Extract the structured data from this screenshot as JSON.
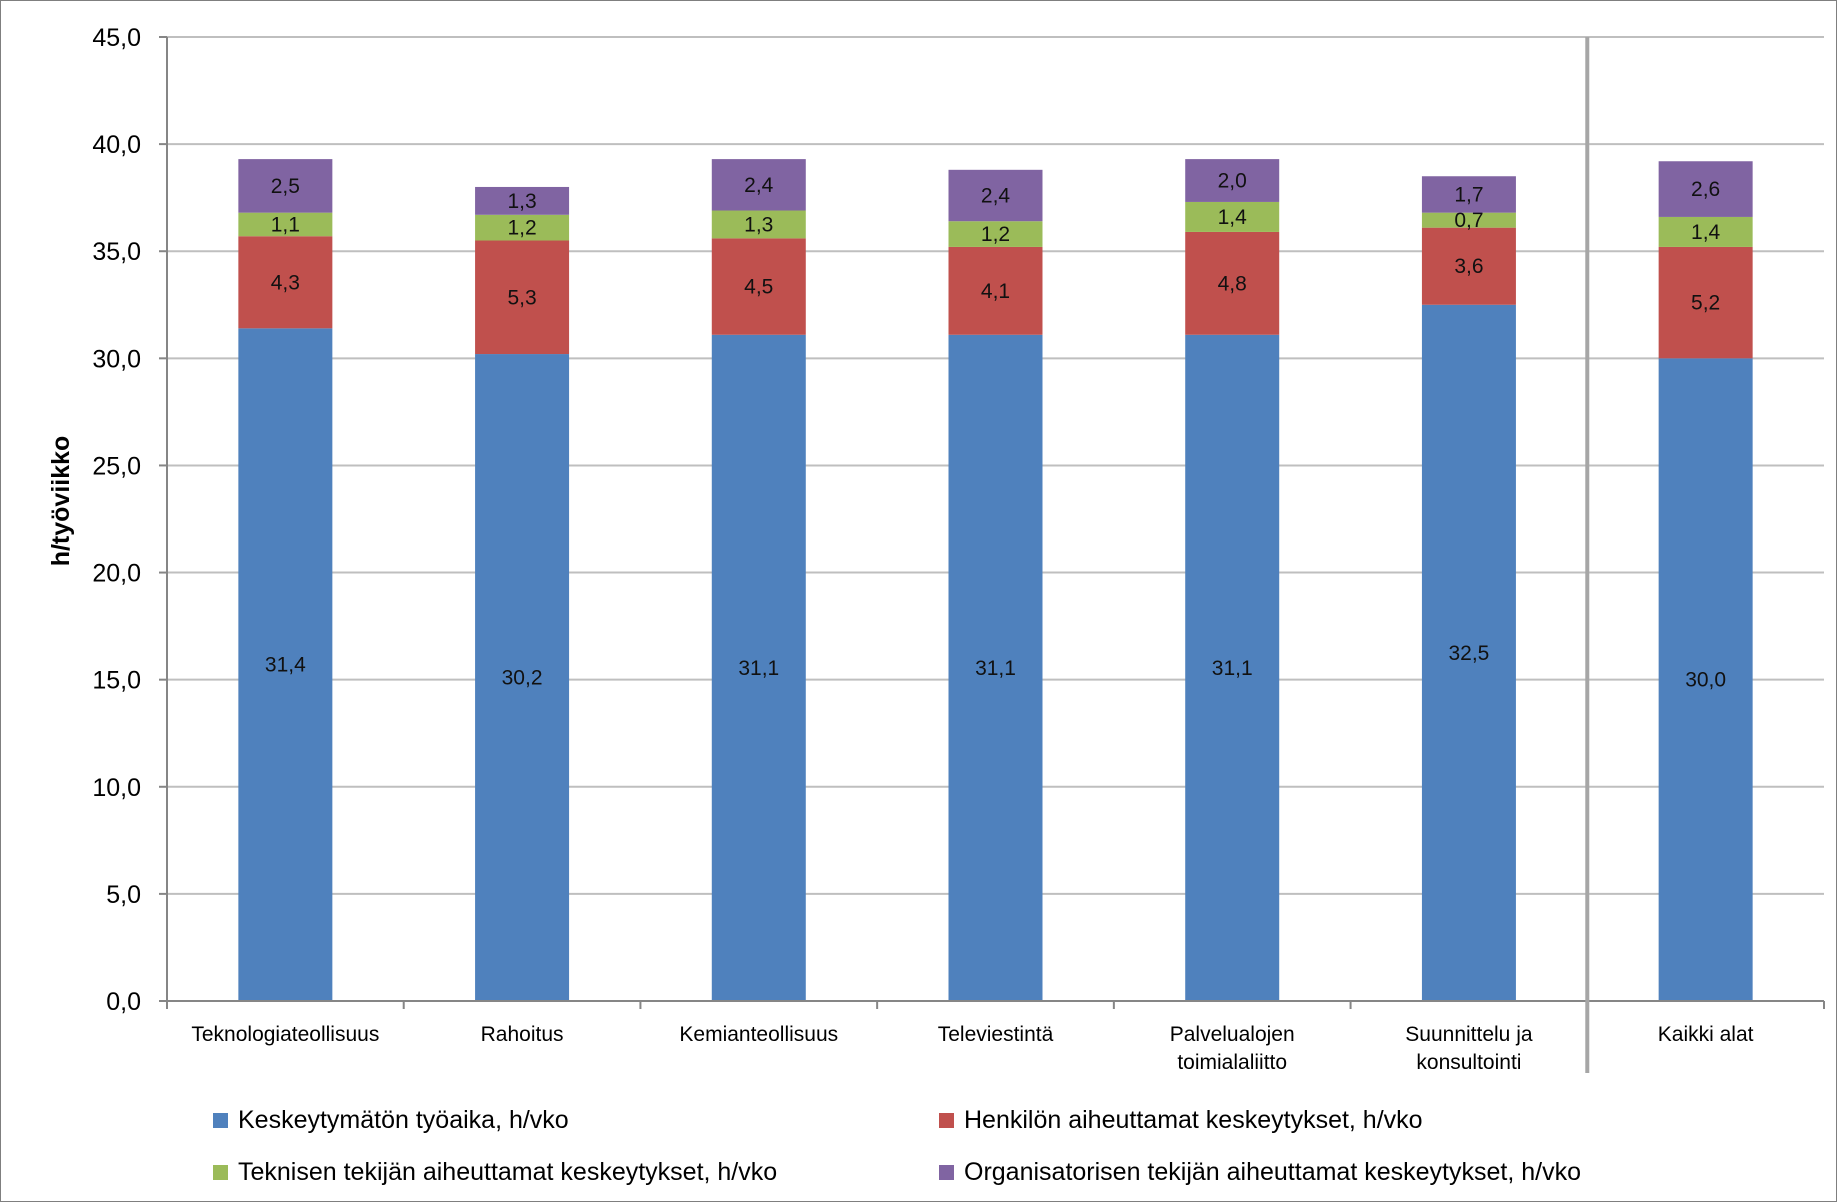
{
  "chart_data": {
    "type": "bar",
    "stacked": true,
    "ylabel": "h/työviikko",
    "xlabel": "",
    "ylim": [
      0,
      45
    ],
    "yticks": [
      "0,0",
      "5,0",
      "10,0",
      "15,0",
      "20,0",
      "25,0",
      "30,0",
      "35,0",
      "40,0",
      "45,0"
    ],
    "grid": true,
    "legend_position": "bottom",
    "categories": [
      [
        "Teknologiateollisuus"
      ],
      [
        "Rahoitus"
      ],
      [
        "Kemianteollisuus"
      ],
      [
        "Televiestintä"
      ],
      [
        "Palvelualojen",
        "toimialaliitto"
      ],
      [
        "Suunnittelu ja",
        "konsultointi"
      ],
      [
        "Kaikki alat"
      ]
    ],
    "separator_before_category": 6,
    "series": [
      {
        "name": "Keskeytymätön työaika, h/vko",
        "color": "#4f81bd",
        "values": [
          31.4,
          30.2,
          31.1,
          31.1,
          31.1,
          32.5,
          30.0
        ],
        "labels": [
          "31,4",
          "30,2",
          "31,1",
          "31,1",
          "31,1",
          "32,5",
          "30,0"
        ]
      },
      {
        "name": "Henkilön aiheuttamat keskeytykset, h/vko",
        "color": "#c0504d",
        "values": [
          4.3,
          5.3,
          4.5,
          4.1,
          4.8,
          3.6,
          5.2
        ],
        "labels": [
          "4,3",
          "5,3",
          "4,5",
          "4,1",
          "4,8",
          "3,6",
          "5,2"
        ]
      },
      {
        "name": "Teknisen tekijän aiheuttamat keskeytykset, h/vko",
        "color": "#9bbb59",
        "values": [
          1.1,
          1.2,
          1.3,
          1.2,
          1.4,
          0.7,
          1.4
        ],
        "labels": [
          "1,1",
          "1,2",
          "1,3",
          "1,2",
          "1,4",
          "0,7",
          "1,4"
        ]
      },
      {
        "name": "Organisatorisen tekijän aiheuttamat keskeytykset, h/vko",
        "color": "#8064a2",
        "values": [
          2.5,
          1.3,
          2.4,
          2.4,
          2.0,
          1.7,
          2.6
        ],
        "labels": [
          "2,5",
          "1,3",
          "2,4",
          "2,4",
          "2,0",
          "1,7",
          "2,6"
        ]
      }
    ]
  }
}
